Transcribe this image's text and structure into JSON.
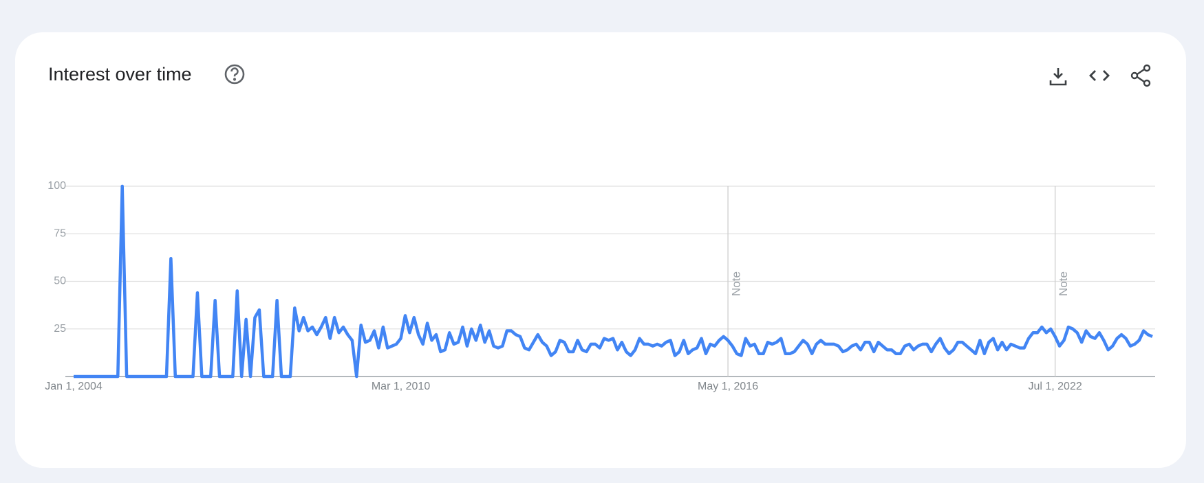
{
  "chart_data": {
    "type": "line",
    "title": "Interest over time",
    "x": [
      "2004-01-01",
      "2004-02-01",
      "2004-03-01",
      "2004-04-01",
      "2004-05-01",
      "2004-06-01",
      "2004-07-01",
      "2004-08-01",
      "2004-09-01",
      "2004-10-01",
      "2004-11-01",
      "2004-12-01",
      "2005-01-01",
      "2005-02-01",
      "2005-03-01",
      "2005-04-01",
      "2005-05-01",
      "2005-06-01",
      "2005-07-01",
      "2005-08-01",
      "2005-09-01",
      "2005-10-01",
      "2005-11-01",
      "2005-12-01",
      "2006-01-01",
      "2006-02-01",
      "2006-03-01",
      "2006-04-01",
      "2006-05-01",
      "2006-06-01",
      "2006-07-01",
      "2006-08-01",
      "2006-09-01",
      "2006-10-01",
      "2006-11-01",
      "2006-12-01",
      "2007-01-01",
      "2007-02-01",
      "2007-03-01",
      "2007-04-01",
      "2007-05-01",
      "2007-06-01",
      "2007-07-01",
      "2007-08-01",
      "2007-09-01",
      "2007-10-01",
      "2007-11-01",
      "2007-12-01",
      "2008-01-01",
      "2008-02-01",
      "2008-03-01",
      "2008-04-01",
      "2008-05-01",
      "2008-06-01",
      "2008-07-01",
      "2008-08-01",
      "2008-09-01",
      "2008-10-01",
      "2008-11-01",
      "2008-12-01",
      "2009-01-01",
      "2009-02-01",
      "2009-03-01",
      "2009-04-01",
      "2009-05-01",
      "2009-06-01",
      "2009-07-01",
      "2009-08-01",
      "2009-09-01",
      "2009-10-01",
      "2009-11-01",
      "2009-12-01",
      "2010-01-01",
      "2010-02-01",
      "2010-03-01",
      "2010-04-01",
      "2010-05-01",
      "2010-06-01",
      "2010-07-01",
      "2010-08-01",
      "2010-09-01",
      "2010-10-01",
      "2010-11-01",
      "2010-12-01",
      "2011-01-01",
      "2011-02-01",
      "2011-03-01",
      "2011-04-01",
      "2011-05-01",
      "2011-06-01",
      "2011-07-01",
      "2011-08-01",
      "2011-09-01",
      "2011-10-01",
      "2011-11-01",
      "2011-12-01",
      "2012-01-01",
      "2012-02-01",
      "2012-03-01",
      "2012-04-01",
      "2012-05-01",
      "2012-06-01",
      "2012-07-01",
      "2012-08-01",
      "2012-09-01",
      "2012-10-01",
      "2012-11-01",
      "2012-12-01",
      "2013-01-01",
      "2013-02-01",
      "2013-03-01",
      "2013-04-01",
      "2013-05-01",
      "2013-06-01",
      "2013-07-01",
      "2013-08-01",
      "2013-09-01",
      "2013-10-01",
      "2013-11-01",
      "2013-12-01",
      "2014-01-01",
      "2014-02-01",
      "2014-03-01",
      "2014-04-01",
      "2014-05-01",
      "2014-06-01",
      "2014-07-01",
      "2014-08-01",
      "2014-09-01",
      "2014-10-01",
      "2014-11-01",
      "2014-12-01",
      "2015-01-01",
      "2015-02-01",
      "2015-03-01",
      "2015-04-01",
      "2015-05-01",
      "2015-06-01",
      "2015-07-01",
      "2015-08-01",
      "2015-09-01",
      "2015-10-01",
      "2015-11-01",
      "2015-12-01",
      "2016-01-01",
      "2016-02-01",
      "2016-03-01",
      "2016-04-01",
      "2016-05-01",
      "2016-06-01",
      "2016-07-01",
      "2016-08-01",
      "2016-09-01",
      "2016-10-01",
      "2016-11-01",
      "2016-12-01",
      "2017-01-01",
      "2017-02-01",
      "2017-03-01",
      "2017-04-01",
      "2017-05-01",
      "2017-06-01",
      "2017-07-01",
      "2017-08-01",
      "2017-09-01",
      "2017-10-01",
      "2017-11-01",
      "2017-12-01",
      "2018-01-01",
      "2018-02-01",
      "2018-03-01",
      "2018-04-01",
      "2018-05-01",
      "2018-06-01",
      "2018-07-01",
      "2018-08-01",
      "2018-09-01",
      "2018-10-01",
      "2018-11-01",
      "2018-12-01",
      "2019-01-01",
      "2019-02-01",
      "2019-03-01",
      "2019-04-01",
      "2019-05-01",
      "2019-06-01",
      "2019-07-01",
      "2019-08-01",
      "2019-09-01",
      "2019-10-01",
      "2019-11-01",
      "2019-12-01",
      "2020-01-01",
      "2020-02-01",
      "2020-03-01",
      "2020-04-01",
      "2020-05-01",
      "2020-06-01",
      "2020-07-01",
      "2020-08-01",
      "2020-09-01",
      "2020-10-01",
      "2020-11-01",
      "2020-12-01",
      "2021-01-01",
      "2021-02-01",
      "2021-03-01",
      "2021-04-01",
      "2021-05-01",
      "2021-06-01",
      "2021-07-01",
      "2021-08-01",
      "2021-09-01",
      "2021-10-01",
      "2021-11-01",
      "2021-12-01",
      "2022-01-01",
      "2022-02-01",
      "2022-03-01",
      "2022-04-01",
      "2022-05-01",
      "2022-06-01",
      "2022-07-01",
      "2022-08-01",
      "2022-09-01",
      "2022-10-01",
      "2022-11-01",
      "2022-12-01",
      "2023-01-01",
      "2023-02-01",
      "2023-03-01",
      "2023-04-01",
      "2023-05-01",
      "2023-06-01",
      "2023-07-01",
      "2023-08-01",
      "2023-09-01",
      "2023-10-01",
      "2023-11-01",
      "2023-12-01",
      "2024-01-01",
      "2024-02-01",
      "2024-03-01",
      "2024-04-01",
      "2024-05-01"
    ],
    "series": [
      {
        "color": "#4285f4",
        "values": [
          0,
          0,
          0,
          0,
          0,
          0,
          0,
          0,
          0,
          0,
          0,
          100,
          0,
          0,
          0,
          0,
          0,
          0,
          0,
          0,
          0,
          0,
          62,
          0,
          0,
          0,
          0,
          0,
          44,
          0,
          0,
          0,
          40,
          0,
          0,
          0,
          0,
          45,
          0,
          30,
          0,
          31,
          35,
          0,
          0,
          0,
          40,
          0,
          0,
          0,
          36,
          24,
          31,
          24,
          26,
          22,
          26,
          31,
          20,
          31,
          23,
          26,
          22,
          19,
          0,
          27,
          18,
          19,
          24,
          15,
          26,
          15,
          16,
          17,
          20,
          32,
          23,
          31,
          22,
          17,
          28,
          19,
          22,
          13,
          14,
          23,
          17,
          18,
          26,
          16,
          25,
          19,
          27,
          18,
          24,
          16,
          15,
          16,
          24,
          24,
          22,
          21,
          15,
          14,
          18,
          22,
          18,
          16,
          11,
          13,
          19,
          18,
          13,
          13,
          19,
          14,
          13,
          17,
          17,
          15,
          20,
          19,
          20,
          14,
          18,
          13,
          11,
          14,
          20,
          17,
          17,
          16,
          17,
          16,
          18,
          19,
          11,
          13,
          19,
          12,
          14,
          15,
          20,
          12,
          17,
          16,
          19,
          21,
          19,
          16,
          12,
          11,
          20,
          16,
          17,
          12,
          12,
          18,
          17,
          18,
          20,
          12,
          12,
          13,
          16,
          19,
          17,
          12,
          17,
          19,
          17,
          17,
          17,
          16,
          13,
          14,
          16,
          17,
          14,
          18,
          18,
          13,
          18,
          16,
          14,
          14,
          12,
          12,
          16,
          17,
          14,
          16,
          17,
          17,
          13,
          17,
          20,
          15,
          12,
          14,
          18,
          18,
          16,
          14,
          12,
          19,
          12,
          18,
          20,
          14,
          18,
          14,
          17,
          16,
          15,
          15,
          20,
          23,
          23,
          26,
          23,
          25,
          21,
          16,
          19,
          26,
          25,
          23,
          18,
          24,
          21,
          20,
          23,
          19,
          14,
          16,
          20,
          22,
          20,
          16,
          17,
          19,
          24,
          22,
          21
        ]
      }
    ],
    "ylim": [
      0,
      100
    ],
    "yticks": [
      25,
      50,
      75,
      100
    ],
    "xticks": [
      {
        "value": "2004-01-01",
        "label": "Jan 1, 2004"
      },
      {
        "value": "2010-03-01",
        "label": "Mar 1, 2010"
      },
      {
        "value": "2016-05-01",
        "label": "May 1, 2016"
      },
      {
        "value": "2022-07-01",
        "label": "Jul 1, 2022"
      }
    ],
    "annotations": [
      {
        "x": "2016-05-01",
        "label": "Note"
      },
      {
        "x": "2022-07-01",
        "label": "Note"
      }
    ],
    "grid": true
  }
}
